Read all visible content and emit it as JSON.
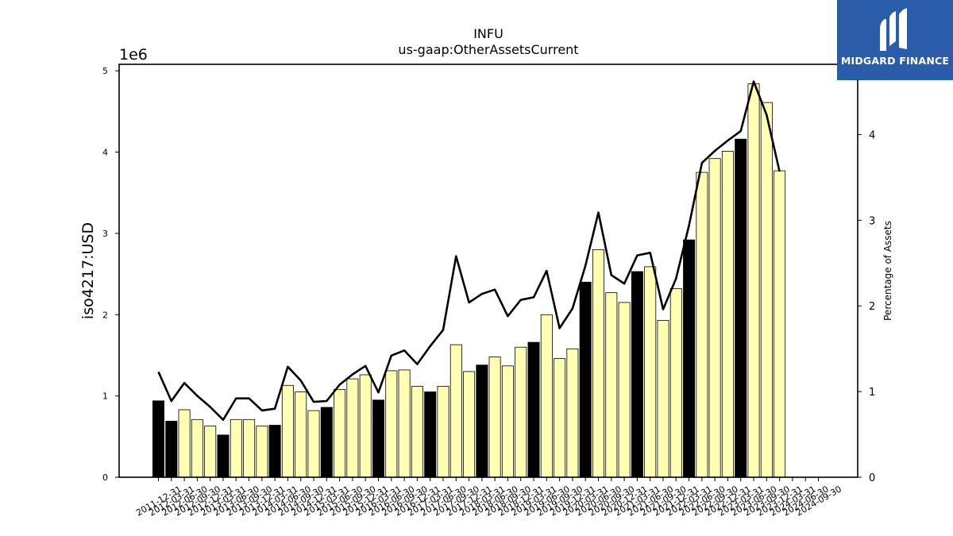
{
  "chart_data": {
    "type": "bar",
    "title": "INFU",
    "subtitle": "us-gaap:OtherAssetsCurrent",
    "ylabel": "iso4217:USD",
    "y_offset_label": "1e6",
    "y2label": "Percentage of Assets",
    "ylim": [
      0,
      5080000
    ],
    "y2lim": [
      0,
      4.82
    ],
    "yticks": [
      0,
      1,
      2,
      3,
      4,
      5
    ],
    "y2ticks": [
      0,
      1,
      2,
      3,
      4
    ],
    "grid": false,
    "categories": [
      "2011-12-31",
      "2012-03-31",
      "2012-06-30",
      "2012-09-30",
      "2012-12-31",
      "2013-03-31",
      "2013-06-30",
      "2013-09-30",
      "2013-12-31",
      "2014-03-31",
      "2014-06-30",
      "2014-09-30",
      "2014-12-31",
      "2015-03-31",
      "2015-06-30",
      "2015-09-30",
      "2015-12-31",
      "2016-03-31",
      "2016-06-30",
      "2016-09-30",
      "2016-12-31",
      "2017-03-31",
      "2017-06-30",
      "2017-09-30",
      "2017-12-31",
      "2018-03-31",
      "2018-06-30",
      "2018-09-30",
      "2018-12-31",
      "2019-03-31",
      "2019-06-30",
      "2019-09-30",
      "2019-12-31",
      "2020-03-31",
      "2020-06-30",
      "2020-09-30",
      "2020-12-31",
      "2021-03-31",
      "2021-06-30",
      "2021-09-30",
      "2021-12-31",
      "2022-03-31",
      "2022-06-30",
      "2022-09-30",
      "2022-12-31",
      "2023-03-31",
      "2023-06-30",
      "2023-09-30",
      "2023-12-31",
      "2024-03-31",
      "2024-06-30",
      "2024-09-30"
    ],
    "xtick_labels": [
      "2011-12-31",
      "2012-03-31",
      "2012-06-30",
      "2012-09-30",
      "2012-12-31",
      "2013-03-31",
      "2013-06-30",
      "2013-09-30",
      "2013-12-31",
      "2014-03-31",
      "2014-06-30",
      "2014-09-30",
      "2014-12-31",
      "2015-03-31",
      "2015-06-30",
      "2015-09-30",
      "2015-12-31",
      "2016-03-31",
      "2016-06-30",
      "2016-09-30",
      "2016-12-31",
      "2017-03-31",
      "2017-06-30",
      "2017-09-30",
      "2017-12-31",
      "2018-03-31",
      "2018-06-30",
      "2018-09-30",
      "2018-12-31",
      "2019-03-31",
      "2019-06-30",
      "2019-09-30",
      "2019-12-31",
      "2020-03-31",
      "2020-06-30",
      "2020-09-30",
      "2020-12-31",
      "2021-03-31",
      "2021-06-30",
      "2021-09-30",
      "2021-12-31",
      "2022-03-31",
      "2022-06-30",
      "2022-09-30",
      "2022-12-31",
      "2023-03-31",
      "2023-06-30",
      "2023-09-30",
      "2023-12-31",
      "2024-03-31",
      "2024-06-30",
      "2024-09-30"
    ],
    "series": [
      {
        "type": "bar",
        "axis": "left",
        "values": [
          940000,
          690000,
          830000,
          710000,
          630000,
          520000,
          710000,
          710000,
          630000,
          640000,
          1130000,
          1050000,
          820000,
          860000,
          1080000,
          1210000,
          1260000,
          950000,
          1310000,
          1320000,
          1120000,
          1050000,
          1120000,
          1630000,
          1300000,
          1380000,
          1480000,
          1370000,
          1600000,
          1660000,
          2000000,
          1460000,
          1580000,
          2400000,
          2800000,
          2270000,
          2150000,
          2530000,
          2590000,
          1930000,
          2320000,
          2920000,
          3750000,
          3920000,
          4010000,
          4160000,
          4840000,
          4610000,
          3770000,
          0,
          0,
          0
        ],
        "highlight": [
          true,
          true,
          false,
          false,
          false,
          true,
          false,
          false,
          false,
          true,
          false,
          false,
          false,
          true,
          false,
          false,
          false,
          true,
          false,
          false,
          false,
          true,
          false,
          false,
          false,
          true,
          false,
          false,
          false,
          true,
          false,
          false,
          false,
          true,
          false,
          false,
          false,
          true,
          false,
          false,
          false,
          true,
          false,
          false,
          false,
          true,
          false,
          false,
          false,
          false,
          false,
          false
        ]
      },
      {
        "type": "line",
        "axis": "right",
        "values": [
          1.23,
          0.89,
          1.1,
          0.95,
          0.82,
          0.67,
          0.92,
          0.92,
          0.78,
          0.8,
          1.29,
          1.13,
          0.88,
          0.89,
          1.08,
          1.2,
          1.3,
          0.99,
          1.42,
          1.48,
          1.32,
          1.53,
          1.72,
          2.58,
          2.04,
          2.14,
          2.19,
          1.88,
          2.07,
          2.1,
          2.41,
          1.74,
          1.97,
          2.47,
          3.09,
          2.36,
          2.26,
          2.59,
          2.62,
          1.96,
          2.32,
          2.94,
          3.67,
          3.81,
          3.93,
          4.04,
          4.62,
          4.23,
          3.57,
          null,
          null,
          null
        ]
      }
    ],
    "colors": {
      "bar_fill": "#ffffb3",
      "bar_highlight": "#000000",
      "bar_edge": "#000000",
      "line": "#000000"
    }
  },
  "logo": {
    "text": "MIDGARD FINANCE",
    "background": "#2a5caa"
  }
}
